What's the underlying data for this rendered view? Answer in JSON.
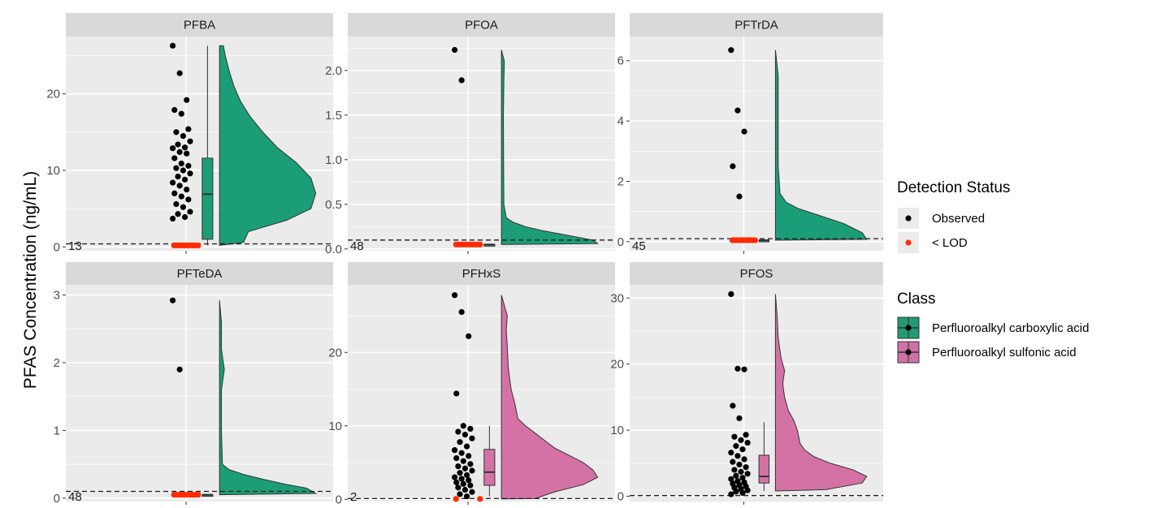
{
  "caption": "",
  "chart_data": {
    "type": "raincloud",
    "ylabel": "PFAS Concentration (ng/mL)",
    "xlabel": "",
    "grid": true,
    "legend_placement": "right",
    "colors": {
      "panel_bg": "#ebebeb",
      "strip_bg": "#d9d9d9",
      "grid_major": "#ffffff",
      "carboxylic": "#1b9e77",
      "sulfonic": "#e7298a",
      "sulfonic_fill": "#d472a6",
      "observed": "#000000",
      "below_lod": "#ff2a00"
    },
    "legends": [
      {
        "title": "Detection Status",
        "entries": [
          {
            "label": "Observed",
            "color": "#000000"
          },
          {
            "label": "< LOD",
            "color": "#ff2a00"
          }
        ]
      },
      {
        "title": "Class",
        "entries": [
          {
            "label": "Perfluoroalkyl carboxylic acid",
            "color": "#229a73"
          },
          {
            "label": "Perfluoroalkyl sulfonic acid",
            "color": "#cf72a6"
          }
        ]
      }
    ],
    "panels": [
      {
        "name": "PFBA",
        "class": "Perfluoroalkyl carboxylic acid",
        "ylim": [
          -0.5,
          27.5
        ],
        "yticks": [
          0,
          10,
          20
        ],
        "ticklabels": [
          "0",
          "10",
          "20"
        ],
        "lod": 0.4,
        "n_below_lod": "13",
        "below_lod_value": 0.2,
        "observed": [
          26.3,
          22.7,
          19.2,
          17.9,
          17.4,
          15.4,
          15.0,
          14.5,
          13.8,
          13.4,
          13.0,
          12.9,
          12.4,
          12.2,
          11.6,
          10.9,
          10.6,
          10.3,
          10.0,
          9.6,
          9.2,
          8.8,
          8.4,
          8.0,
          7.5,
          7.0,
          6.6,
          6.2,
          5.6,
          5.2,
          4.6,
          4.3,
          3.9,
          3.7
        ],
        "box": {
          "q1": 1.0,
          "median": 6.9,
          "q3": 11.6,
          "whisker_low": 0.2,
          "whisker_high": 26.3
        },
        "density": [
          [
            0.2,
            0.0
          ],
          [
            0.6,
            0.25
          ],
          [
            2.0,
            0.3
          ],
          [
            3.5,
            0.7
          ],
          [
            5.0,
            0.95
          ],
          [
            7.0,
            1.0
          ],
          [
            9.0,
            0.95
          ],
          [
            11.0,
            0.8
          ],
          [
            13.0,
            0.6
          ],
          [
            15.0,
            0.45
          ],
          [
            17.0,
            0.32
          ],
          [
            19.0,
            0.22
          ],
          [
            21.0,
            0.15
          ],
          [
            23.0,
            0.1
          ],
          [
            25.0,
            0.06
          ],
          [
            26.3,
            0.04
          ]
        ]
      },
      {
        "name": "PFOA",
        "class": "Perfluoroalkyl carboxylic acid",
        "ylim": [
          -0.02,
          2.38
        ],
        "yticks": [
          0.0,
          0.5,
          1.0,
          1.5,
          2.0
        ],
        "ticklabels": [
          "0.0",
          "0.5",
          "1.0",
          "1.5",
          "2.0"
        ],
        "lod": 0.1,
        "n_below_lod": "48",
        "below_lod_value": 0.05,
        "observed": [
          2.23,
          1.89
        ],
        "box": {
          "q1": 0.05,
          "median": 0.05,
          "q3": 0.05,
          "whisker_low": 0.05,
          "whisker_high": 0.05
        },
        "density": [
          [
            0.05,
            0.0
          ],
          [
            0.06,
            1.0
          ],
          [
            0.1,
            0.95
          ],
          [
            0.15,
            0.7
          ],
          [
            0.2,
            0.45
          ],
          [
            0.25,
            0.25
          ],
          [
            0.3,
            0.12
          ],
          [
            0.35,
            0.05
          ],
          [
            0.5,
            0.025
          ],
          [
            1.0,
            0.022
          ],
          [
            1.5,
            0.02
          ],
          [
            1.9,
            0.025
          ],
          [
            2.1,
            0.03
          ],
          [
            2.23,
            0.0
          ]
        ]
      },
      {
        "name": "PFTrDA",
        "class": "Perfluoroalkyl carboxylic acid",
        "ylim": [
          -0.3,
          6.8
        ],
        "yticks": [
          0,
          2,
          4,
          6
        ],
        "ticklabels": [
          "0",
          "2",
          "4",
          "6"
        ],
        "lod": 0.1,
        "n_below_lod": "45",
        "below_lod_value": 0.05,
        "observed": [
          6.35,
          4.35,
          3.65,
          2.5,
          1.5
        ],
        "box": {
          "q1": 0.05,
          "median": 0.05,
          "q3": 0.05,
          "whisker_low": 0.05,
          "whisker_high": 0.05
        },
        "density": [
          [
            0.05,
            0.0
          ],
          [
            0.08,
            1.0
          ],
          [
            0.3,
            0.95
          ],
          [
            0.6,
            0.75
          ],
          [
            0.9,
            0.45
          ],
          [
            1.1,
            0.25
          ],
          [
            1.3,
            0.12
          ],
          [
            1.6,
            0.05
          ],
          [
            2.5,
            0.03
          ],
          [
            4.0,
            0.03
          ],
          [
            5.5,
            0.03
          ],
          [
            6.35,
            0.0
          ]
        ]
      },
      {
        "name": "PFTeDA",
        "class": "Perfluoroalkyl carboxylic acid",
        "ylim": [
          -0.05,
          3.15
        ],
        "yticks": [
          0,
          1,
          2,
          3
        ],
        "ticklabels": [
          "0",
          "1",
          "2",
          "3"
        ],
        "lod": 0.1,
        "n_below_lod": "48",
        "below_lod_value": 0.05,
        "observed": [
          2.92,
          1.9
        ],
        "box": {
          "q1": 0.05,
          "median": 0.05,
          "q3": 0.05,
          "whisker_low": 0.05,
          "whisker_high": 0.05
        },
        "density": [
          [
            0.05,
            0.0
          ],
          [
            0.07,
            1.0
          ],
          [
            0.15,
            0.9
          ],
          [
            0.2,
            0.7
          ],
          [
            0.28,
            0.45
          ],
          [
            0.35,
            0.25
          ],
          [
            0.42,
            0.1
          ],
          [
            0.5,
            0.03
          ],
          [
            1.0,
            0.02
          ],
          [
            1.6,
            0.02
          ],
          [
            1.9,
            0.05
          ],
          [
            2.2,
            0.02
          ],
          [
            2.6,
            0.02
          ],
          [
            2.92,
            0.0
          ]
        ]
      },
      {
        "name": "PFHxS",
        "class": "Perfluoroalkyl sulfonic acid",
        "ylim": [
          -0.3,
          29.2
        ],
        "yticks": [
          0,
          10,
          20
        ],
        "ticklabels": [
          "0",
          "10",
          "20"
        ],
        "lod": 0.1,
        "n_below_lod": "2",
        "below_lod_value": 0.05,
        "observed": [
          27.8,
          25.5,
          22.2,
          14.4,
          10.0,
          9.6,
          9.2,
          8.8,
          8.3,
          7.8,
          7.2,
          6.7,
          6.3,
          5.9,
          5.6,
          5.2,
          4.8,
          4.5,
          4.2,
          3.9,
          3.6,
          3.3,
          3.0,
          2.8,
          2.6,
          2.3,
          2.1,
          1.9,
          1.6,
          1.3,
          1.0,
          0.7,
          0.4
        ],
        "box": {
          "q1": 1.9,
          "median": 3.7,
          "q3": 6.8,
          "whisker_low": 0.4,
          "whisker_high": 10.0
        },
        "density": [
          [
            0.05,
            0.0
          ],
          [
            0.1,
            0.35
          ],
          [
            1.0,
            0.55
          ],
          [
            2.0,
            0.85
          ],
          [
            3.0,
            1.0
          ],
          [
            4.0,
            0.95
          ],
          [
            5.0,
            0.85
          ],
          [
            6.0,
            0.7
          ],
          [
            7.0,
            0.55
          ],
          [
            8.0,
            0.45
          ],
          [
            9.0,
            0.35
          ],
          [
            10.0,
            0.25
          ],
          [
            11.0,
            0.17
          ],
          [
            13.0,
            0.14
          ],
          [
            15.0,
            0.1
          ],
          [
            18.0,
            0.07
          ],
          [
            21.0,
            0.06
          ],
          [
            23.0,
            0.05
          ],
          [
            25.0,
            0.06
          ],
          [
            27.8,
            0.0
          ]
        ]
      },
      {
        "name": "PFOS",
        "class": "Perfluoroalkyl sulfonic acid",
        "ylim": [
          -0.8,
          32.0
        ],
        "yticks": [
          0,
          10,
          20,
          30
        ],
        "ticklabels": [
          "0",
          "10",
          "20",
          "30"
        ],
        "lod": 0.1,
        "n_below_lod": "",
        "below_lod_value": 0.05,
        "observed": [
          30.6,
          19.3,
          19.2,
          13.7,
          11.8,
          9.3,
          9.0,
          8.5,
          8.1,
          7.6,
          7.1,
          6.6,
          6.1,
          5.6,
          5.2,
          4.8,
          4.4,
          4.0,
          3.7,
          3.4,
          3.1,
          2.8,
          2.6,
          2.3,
          2.1,
          1.9,
          1.7,
          1.5,
          1.3,
          1.1,
          0.9,
          0.7,
          0.5,
          0.3
        ],
        "box": {
          "q1": 2.0,
          "median": 3.0,
          "q3": 6.2,
          "whisker_low": 0.8,
          "whisker_high": 11.2
        },
        "density": [
          [
            0.8,
            0.0
          ],
          [
            1.0,
            0.55
          ],
          [
            2.0,
            0.95
          ],
          [
            3.0,
            1.0
          ],
          [
            4.0,
            0.85
          ],
          [
            5.0,
            0.6
          ],
          [
            6.0,
            0.42
          ],
          [
            7.0,
            0.32
          ],
          [
            8.0,
            0.27
          ],
          [
            10.0,
            0.24
          ],
          [
            11.5,
            0.2
          ],
          [
            13.0,
            0.14
          ],
          [
            15.0,
            0.1
          ],
          [
            17.0,
            0.08
          ],
          [
            19.0,
            0.1
          ],
          [
            21.0,
            0.06
          ],
          [
            24.0,
            0.03
          ],
          [
            27.0,
            0.02
          ],
          [
            30.6,
            0.0
          ]
        ]
      }
    ]
  }
}
